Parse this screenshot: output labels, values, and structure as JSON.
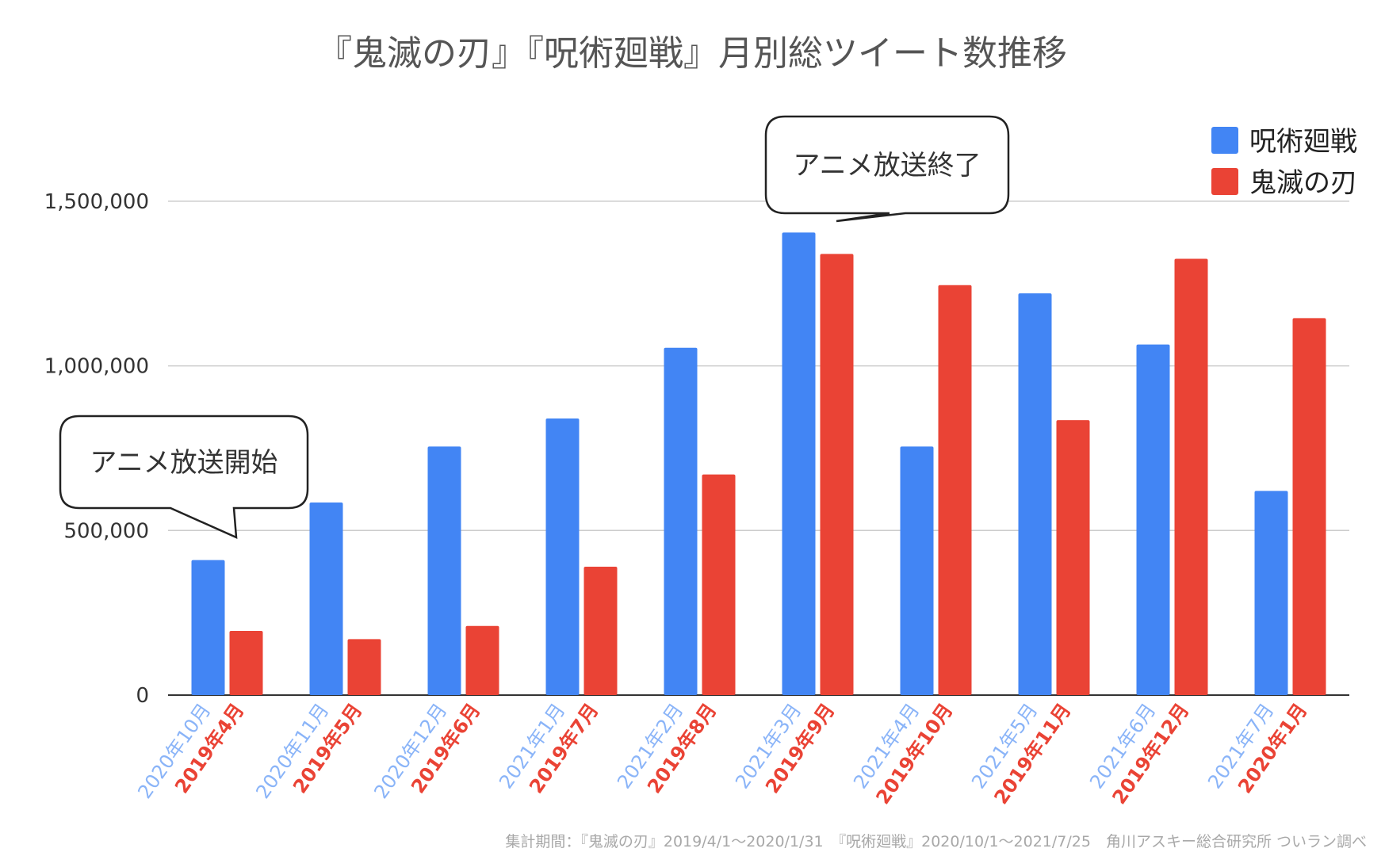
{
  "chart_data": {
    "type": "bar",
    "title": "『鬼滅の刃』『呪術廻戦』月別総ツイート数推移",
    "xlabel": "",
    "ylabel": "",
    "ylim": [
      0,
      1750000
    ],
    "yticks": [
      {
        "value": 0,
        "label": "0"
      },
      {
        "value": 500000,
        "label": "500,000"
      },
      {
        "value": 1000000,
        "label": "1,000,000"
      },
      {
        "value": 1500000,
        "label": "1,500,000"
      }
    ],
    "grid": true,
    "legend_position": "top-right",
    "categories": [
      {
        "top": "2020年10月",
        "bottom": "2019年4月"
      },
      {
        "top": "2020年11月",
        "bottom": "2019年5月"
      },
      {
        "top": "2020年12月",
        "bottom": "2019年6月"
      },
      {
        "top": "2021年1月",
        "bottom": "2019年7月"
      },
      {
        "top": "2021年2月",
        "bottom": "2019年8月"
      },
      {
        "top": "2021年3月",
        "bottom": "2019年9月"
      },
      {
        "top": "2021年4月",
        "bottom": "2019年10月"
      },
      {
        "top": "2021年5月",
        "bottom": "2019年11月"
      },
      {
        "top": "2021年6月",
        "bottom": "2019年12月"
      },
      {
        "top": "2021年7月",
        "bottom": "2020年1月"
      }
    ],
    "series": [
      {
        "name": "呪術廻戦",
        "color": "#4285f4",
        "values": [
          410000,
          585000,
          755000,
          840000,
          1055000,
          1405000,
          755000,
          1220000,
          1065000,
          620000
        ]
      },
      {
        "name": "鬼滅の刃",
        "color": "#ea4335",
        "values": [
          195000,
          170000,
          210000,
          390000,
          670000,
          1340000,
          1245000,
          835000,
          1325000,
          1145000
        ]
      }
    ],
    "annotations": [
      {
        "text": "アニメ放送開始",
        "category_index": 0
      },
      {
        "text": "アニメ放送終了",
        "category_index": 5
      }
    ],
    "footnote": "集計期間：『鬼滅の刃』2019/4/1〜2020/1/31　『呪術廻戦』2020/10/1〜2021/7/25　角川アスキー総合研究所 ついラン調べ"
  }
}
